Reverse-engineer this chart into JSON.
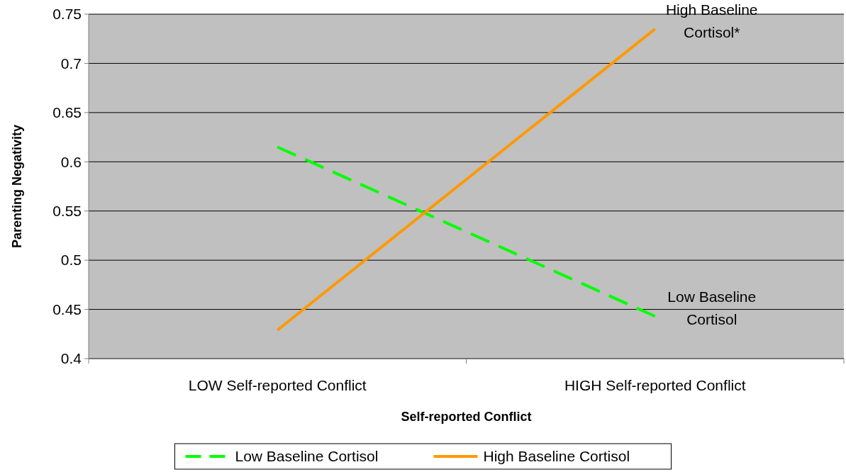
{
  "chart_data": {
    "type": "line",
    "xlabel": "Self-reported Conflict",
    "ylabel": "Parenting Negativity",
    "categories": [
      "LOW Self-reported Conflict",
      "HIGH Self-reported Conflict"
    ],
    "series": [
      {
        "name": "Low Baseline Cortisol",
        "color": "#00ff00",
        "line_style": "dashed",
        "values": [
          0.615,
          0.443
        ]
      },
      {
        "name": "High Baseline Cortisol",
        "color": "#ff9900",
        "line_style": "solid",
        "values": [
          0.429,
          0.735
        ]
      }
    ],
    "ylim": [
      0.4,
      0.75
    ],
    "yticks": [
      0.4,
      0.45,
      0.5,
      0.55,
      0.6,
      0.65,
      0.7,
      0.75
    ],
    "grid": "y",
    "legend": "bottom",
    "marker": "none",
    "annotations": [
      {
        "text": "High Baseline Cortisol*",
        "x": "HIGH Self-reported Conflict",
        "y": 0.735
      },
      {
        "text": "Low Baseline Cortisol",
        "x": "HIGH Self-reported Conflict",
        "y": 0.443
      }
    ]
  }
}
